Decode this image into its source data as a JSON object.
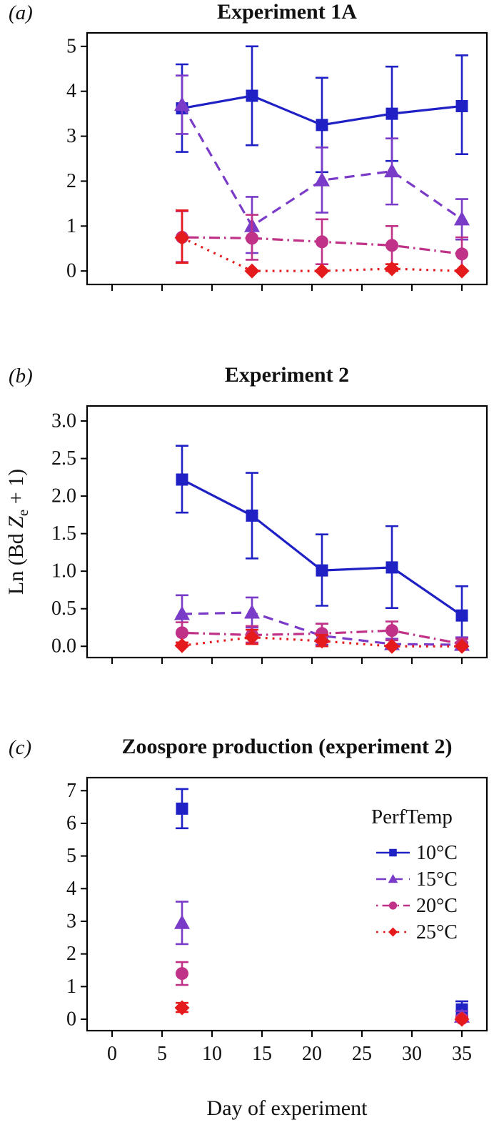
{
  "figure": {
    "xlabel": "Day of experiment",
    "x_ticks": [
      0,
      5,
      10,
      15,
      20,
      25,
      30,
      35
    ],
    "xlim": [
      -2.5,
      37.5
    ],
    "background": "#ffffff",
    "axis_color": "#000000"
  },
  "legend": {
    "title": "PerfTemp",
    "items": [
      {
        "label": "10°C",
        "color": "#1f21c5",
        "marker": "square",
        "line": "solid"
      },
      {
        "label": "15°C",
        "color": "#7a3bc8",
        "marker": "triangle",
        "line": "dashed"
      },
      {
        "label": "20°C",
        "color": "#c03287",
        "marker": "circle",
        "line": "dotdash"
      },
      {
        "label": "25°C",
        "color": "#e41a1c",
        "marker": "diamond",
        "line": "dotted"
      }
    ]
  },
  "chart_data": [
    {
      "type": "line",
      "panel_label": "(a)",
      "title": "Experiment 1A",
      "x": [
        7,
        14,
        21,
        28,
        35
      ],
      "ylim": [
        -0.3,
        5.3
      ],
      "ytick_values": [
        0,
        1,
        2,
        3,
        4,
        5
      ],
      "ytick_labels": [
        "0",
        "1",
        "2",
        "3",
        "4",
        "5"
      ],
      "show_x_tick_labels": false,
      "has_legend": false,
      "series": [
        {
          "name": "10°C",
          "color": "#1f21c5",
          "marker": "square",
          "line": "solid",
          "values": [
            3.62,
            3.9,
            3.25,
            3.5,
            3.67
          ],
          "err_lo": [
            2.65,
            2.8,
            2.2,
            2.45,
            2.6
          ],
          "err_hi": [
            4.6,
            5.0,
            4.3,
            4.55,
            4.8
          ]
        },
        {
          "name": "15°C",
          "color": "#7a3bc8",
          "marker": "triangle",
          "line": "dashed",
          "values": [
            3.7,
            1.0,
            2.02,
            2.22,
            1.15
          ],
          "err_lo": [
            3.05,
            0.4,
            1.3,
            1.48,
            0.7
          ],
          "err_hi": [
            4.35,
            1.65,
            2.75,
            2.95,
            1.6
          ]
        },
        {
          "name": "20°C",
          "color": "#c03287",
          "marker": "circle",
          "line": "dotdash",
          "values": [
            0.75,
            0.73,
            0.65,
            0.57,
            0.38
          ],
          "err_lo": [
            0.2,
            0.25,
            0.15,
            0.15,
            0.02
          ],
          "err_hi": [
            1.33,
            1.25,
            1.15,
            1.0,
            0.75
          ]
        },
        {
          "name": "25°C",
          "color": "#e41a1c",
          "marker": "diamond",
          "line": "dotted",
          "values": [
            0.74,
            0.0,
            0.0,
            0.05,
            0.0
          ],
          "err_lo": [
            0.18,
            0.0,
            0.0,
            0.0,
            0.0
          ],
          "err_hi": [
            1.35,
            0.0,
            0.0,
            0.15,
            0.0
          ]
        }
      ]
    },
    {
      "type": "line",
      "panel_label": "(b)",
      "title": "Experiment 2",
      "ylabel": "Ln (Bd Ze + 1)",
      "ylabel_parts": [
        {
          "t": "Ln (Bd ",
          "s": "n"
        },
        {
          "t": "Z",
          "s": "i"
        },
        {
          "t": "e",
          "s": "sub"
        },
        {
          "t": " + 1)",
          "s": "n"
        }
      ],
      "x": [
        7,
        14,
        21,
        28,
        35
      ],
      "ylim": [
        -0.15,
        3.2
      ],
      "ytick_values": [
        0,
        0.5,
        1,
        1.5,
        2,
        2.5,
        3
      ],
      "ytick_labels": [
        "0.0",
        "0.5",
        "1.0",
        "1.5",
        "2.0",
        "2.5",
        "3.0"
      ],
      "show_x_tick_labels": false,
      "has_legend": false,
      "series": [
        {
          "name": "10°C",
          "color": "#1f21c5",
          "marker": "square",
          "line": "solid",
          "values": [
            2.22,
            1.74,
            1.01,
            1.05,
            0.41
          ],
          "err_lo": [
            1.78,
            1.17,
            0.54,
            0.51,
            0.05
          ],
          "err_hi": [
            2.67,
            2.31,
            1.49,
            1.6,
            0.8
          ]
        },
        {
          "name": "15°C",
          "color": "#7a3bc8",
          "marker": "triangle",
          "line": "dashed",
          "values": [
            0.43,
            0.45,
            0.14,
            0.03,
            0.02
          ],
          "err_lo": [
            0.17,
            0.25,
            0.02,
            0.0,
            0.0
          ],
          "err_hi": [
            0.68,
            0.65,
            0.3,
            0.1,
            0.12
          ]
        },
        {
          "name": "20°C",
          "color": "#c03287",
          "marker": "circle",
          "line": "dotdash",
          "values": [
            0.18,
            0.15,
            0.17,
            0.21,
            0.03
          ],
          "err_lo": [
            0.05,
            0.05,
            0.05,
            0.08,
            0.0
          ],
          "err_hi": [
            0.32,
            0.27,
            0.3,
            0.33,
            0.1
          ]
        },
        {
          "name": "25°C",
          "color": "#e41a1c",
          "marker": "diamond",
          "line": "dotted",
          "values": [
            0.01,
            0.12,
            0.07,
            0.0,
            0.0
          ],
          "err_lo": [
            0.0,
            0.03,
            0.0,
            0.0,
            0.0
          ],
          "err_hi": [
            0.05,
            0.22,
            0.15,
            0.02,
            0.02
          ]
        }
      ]
    },
    {
      "type": "scatter",
      "panel_label": "(c)",
      "title": "Zoospore production (experiment 2)",
      "x": [
        7,
        35
      ],
      "ylim": [
        -0.35,
        7.4
      ],
      "ytick_values": [
        0,
        1,
        2,
        3,
        4,
        5,
        6,
        7
      ],
      "ytick_labels": [
        "0",
        "1",
        "2",
        "3",
        "4",
        "5",
        "6",
        "7"
      ],
      "show_x_tick_labels": true,
      "has_legend": true,
      "series": [
        {
          "name": "10°C",
          "color": "#1f21c5",
          "marker": "square",
          "line": "solid",
          "values": [
            6.45,
            0.3
          ],
          "err_lo": [
            5.85,
            0.02
          ],
          "err_hi": [
            7.05,
            0.55
          ]
        },
        {
          "name": "15°C",
          "color": "#7a3bc8",
          "marker": "triangle",
          "line": "dashed",
          "values": [
            2.95,
            0.08
          ],
          "err_lo": [
            2.3,
            0.0
          ],
          "err_hi": [
            3.6,
            0.25
          ]
        },
        {
          "name": "20°C",
          "color": "#c03287",
          "marker": "circle",
          "line": "dotdash",
          "values": [
            1.4,
            0.02
          ],
          "err_lo": [
            1.05,
            0.0
          ],
          "err_hi": [
            1.75,
            0.1
          ]
        },
        {
          "name": "25°C",
          "color": "#e41a1c",
          "marker": "diamond",
          "line": "dotted",
          "values": [
            0.35,
            0.0
          ],
          "err_lo": [
            0.22,
            0.0
          ],
          "err_hi": [
            0.5,
            0.05
          ]
        }
      ]
    }
  ]
}
